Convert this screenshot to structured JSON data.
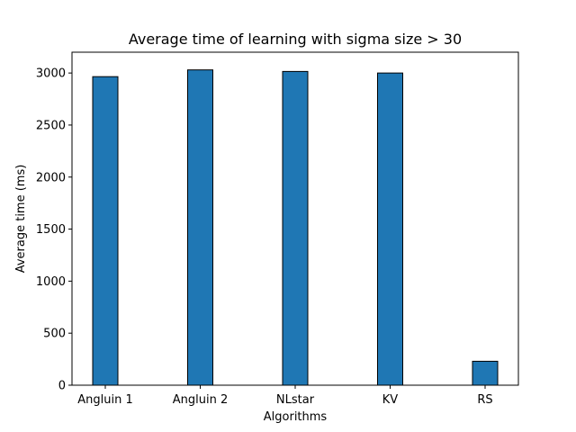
{
  "chart_data": {
    "type": "bar",
    "title": "Average time of learning with sigma size > 30",
    "xlabel": "Algorithms",
    "ylabel": "Average time (ms)",
    "categories": [
      "Angluin 1",
      "Angluin 2",
      "NLstar",
      "KV",
      "RS"
    ],
    "values": [
      2965,
      3030,
      3015,
      3000,
      230
    ],
    "ylim": [
      0,
      3200
    ],
    "yticks": [
      0,
      500,
      1000,
      1500,
      2000,
      2500,
      3000
    ],
    "bar_color": "#1f77b4",
    "edge_color": "#000000",
    "grid": false,
    "legend": "none"
  }
}
